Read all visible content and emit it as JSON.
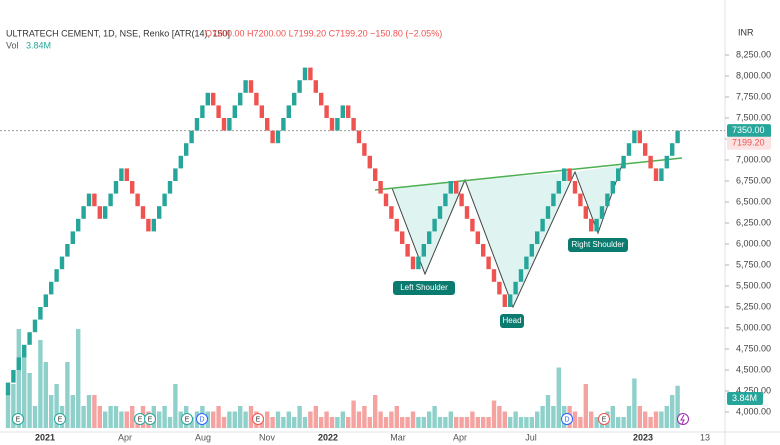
{
  "chart_data": {
    "type": "renko",
    "header": {
      "symbol": "ULTRATECH CEMENT, 1D, NSE, Renko [ATR(14), 150]",
      "ohlc": "O7200.00 H7200.00 L7199.20 C7199.20 −150.80 (−2.05%)",
      "volume": "Vol",
      "volume_value": "3.84M"
    },
    "currency": "INR",
    "box_size": 150,
    "up_color": "#26a69a",
    "down_color": "#ef5350",
    "vol_up_color": "#8fd1ca",
    "vol_down_color": "#f5a3a1",
    "closes": [
      4350,
      4500,
      4650,
      4800,
      4950,
      5100,
      5250,
      5400,
      5550,
      5700,
      5850,
      6000,
      6150,
      6300,
      6450,
      6600,
      6450,
      6300,
      6450,
      6600,
      6750,
      6900,
      6750,
      6600,
      6450,
      6300,
      6150,
      6300,
      6450,
      6600,
      6750,
      6900,
      7050,
      7200,
      7350,
      7500,
      7650,
      7800,
      7650,
      7500,
      7350,
      7500,
      7650,
      7800,
      7950,
      7800,
      7650,
      7500,
      7350,
      7200,
      7350,
      7500,
      7650,
      7800,
      7950,
      8100,
      7950,
      7800,
      7650,
      7500,
      7350,
      7500,
      7650,
      7500,
      7350,
      7200,
      7050,
      6900,
      6750,
      6600,
      6450,
      6300,
      6150,
      6000,
      5850,
      5700,
      5850,
      6000,
      6150,
      6300,
      6450,
      6600,
      6750,
      6600,
      6450,
      6300,
      6150,
      6000,
      5850,
      5700,
      5550,
      5400,
      5250,
      5400,
      5550,
      5700,
      5850,
      6000,
      6150,
      6300,
      6450,
      6600,
      6750,
      6900,
      6750,
      6600,
      6450,
      6300,
      6150,
      6300,
      6450,
      6600,
      6750,
      6900,
      7050,
      7200,
      7350,
      7200,
      7050,
      6900,
      6750,
      6900,
      7050,
      7200,
      7350
    ],
    "volumes": [
      3,
      4,
      9,
      7,
      5,
      2,
      8,
      6,
      3,
      4,
      2,
      6,
      3,
      9,
      2,
      3,
      3,
      2,
      1.5,
      2,
      2,
      1.5,
      1.5,
      2,
      1,
      2,
      1.5,
      2,
      1.5,
      2,
      1,
      4,
      1.5,
      2,
      1,
      1.5,
      2,
      1.5,
      1.5,
      2,
      1,
      1.5,
      1.5,
      2,
      1.5,
      2,
      1.5,
      1,
      1.5,
      1,
      1.5,
      1,
      1.5,
      1,
      2,
      1,
      1.5,
      2,
      1,
      1.5,
      1,
      1,
      1.5,
      1,
      2.5,
      1.5,
      2,
      1,
      3,
      1.5,
      1,
      1.5,
      2,
      1,
      1,
      1.5,
      1,
      1,
      1.5,
      2,
      1,
      1,
      1.5,
      1,
      1,
      1,
      1.5,
      1,
      1,
      1,
      2.5,
      2,
      1.5,
      1,
      1.5,
      1,
      1,
      1,
      1.5,
      2,
      3,
      2,
      5.5,
      2,
      2,
      1.5,
      1,
      4,
      1.5,
      1,
      1,
      1.5,
      2,
      1,
      1,
      2,
      4.5,
      2,
      1.5,
      1,
      1.5,
      1.5,
      2,
      3,
      3.84
    ],
    "ylim": [
      3900,
      8450
    ],
    "yticks": [
      {
        "value": 8250,
        "label": "8,250.00"
      },
      {
        "value": 8000,
        "label": "8,000.00"
      },
      {
        "value": 7750,
        "label": "7,750.00"
      },
      {
        "value": 7500,
        "label": "7,500.00"
      },
      {
        "value": 7250,
        "label": "7,250.00"
      },
      {
        "value": 7000,
        "label": "7,000.00"
      },
      {
        "value": 6750,
        "label": "6,750.00"
      },
      {
        "value": 6500,
        "label": "6,500.00"
      },
      {
        "value": 6250,
        "label": "6,250.00"
      },
      {
        "value": 6000,
        "label": "6,000.00"
      },
      {
        "value": 5750,
        "label": "5,750.00"
      },
      {
        "value": 5500,
        "label": "5,500.00"
      },
      {
        "value": 5250,
        "label": "5,250.00"
      },
      {
        "value": 5000,
        "label": "5,000.00"
      },
      {
        "value": 4750,
        "label": "4,750.00"
      },
      {
        "value": 4500,
        "label": "4,500.00"
      },
      {
        "value": 4250,
        "label": "4,250.00"
      },
      {
        "value": 4000,
        "label": "4,000.00"
      }
    ],
    "last_price": {
      "value": 7350,
      "label": "7350.00"
    },
    "live_price": {
      "value": 7199.2,
      "label": "7199.20"
    },
    "x_labels": [
      "2021",
      "Apr",
      "Aug",
      "Nov",
      "2022",
      "Mar",
      "Apr",
      "Jul",
      "2023",
      "13"
    ],
    "annotations": [
      "Left Shoulder",
      "Head",
      "Right Shoulder"
    ],
    "events": [
      "E",
      "E",
      "E",
      "E",
      "E",
      "D",
      "E",
      "D",
      "E"
    ]
  }
}
